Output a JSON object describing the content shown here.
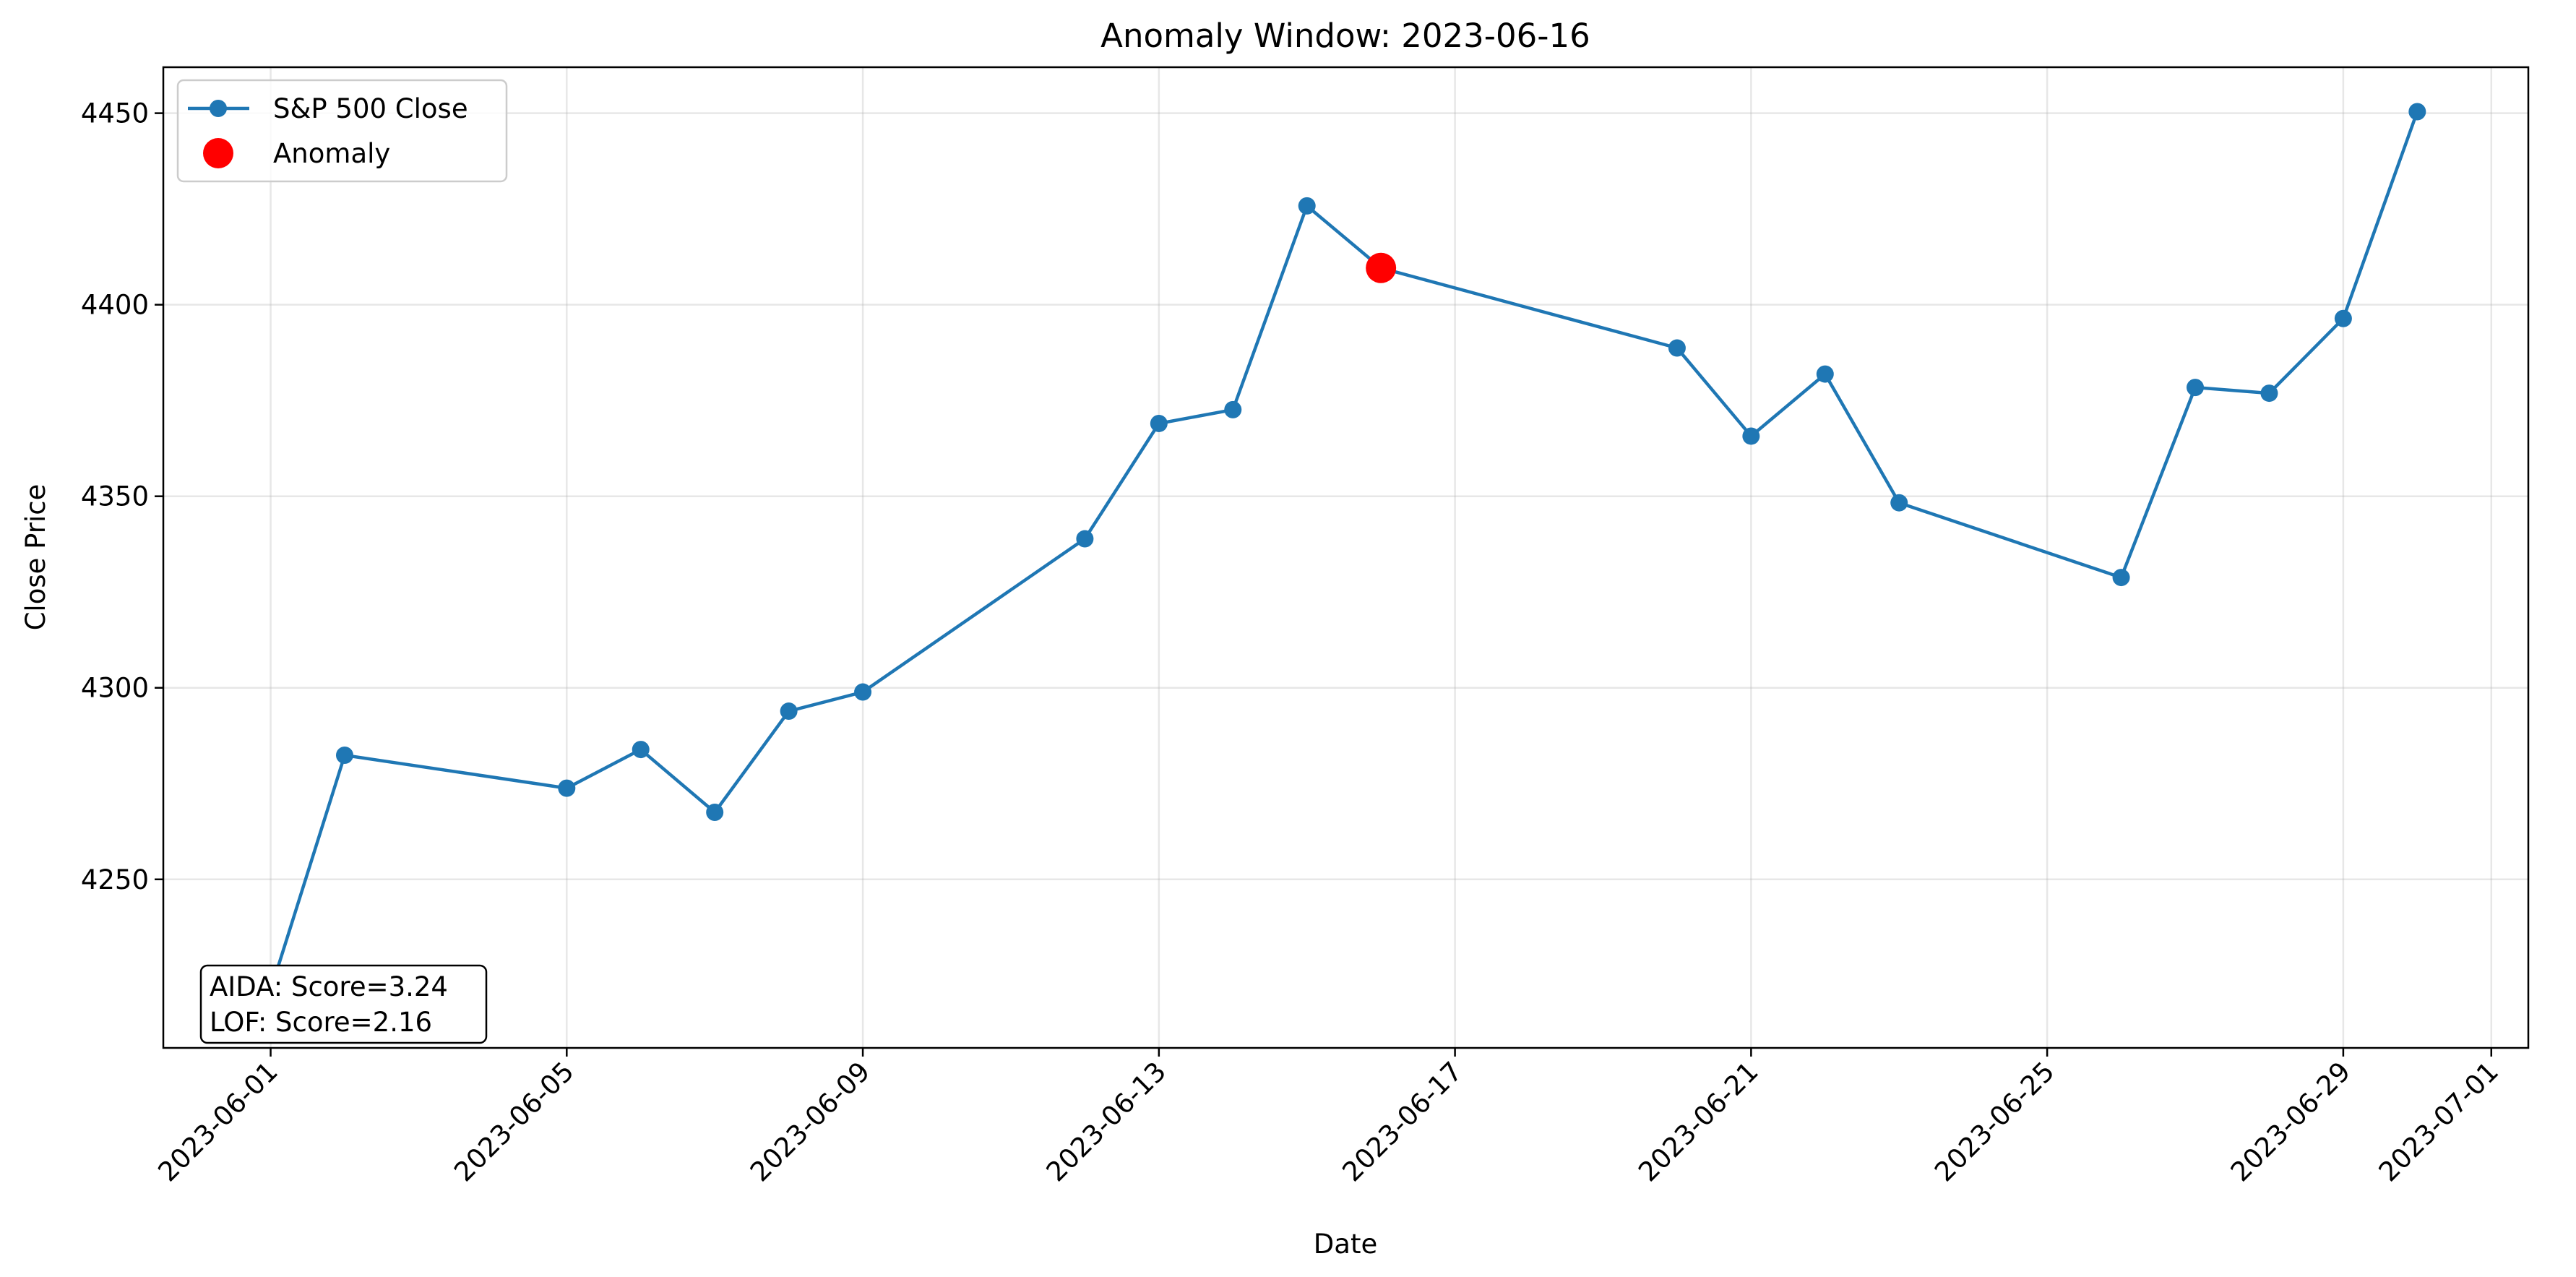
{
  "chart_data": {
    "type": "line",
    "title": "Anomaly Window: 2023-06-16",
    "xlabel": "Date",
    "ylabel": "Close Price",
    "xlim": [
      "2022-05-30",
      "2023-07-01"
    ],
    "ylim": [
      4206,
      4462
    ],
    "grid": true,
    "legend_position": "top-left",
    "xticks": [
      "2023-06-01",
      "2023-06-05",
      "2023-06-09",
      "2023-06-13",
      "2023-06-17",
      "2023-06-21",
      "2023-06-25",
      "2023-06-29",
      "2023-07-01"
    ],
    "yticks": [
      4250,
      4300,
      4350,
      4400,
      4450
    ],
    "series": [
      {
        "name": "S&P 500 Close",
        "color": "#1f77b4",
        "marker": "circle",
        "x": [
          "2023-06-01",
          "2023-06-02",
          "2023-06-05",
          "2023-06-06",
          "2023-06-07",
          "2023-06-08",
          "2023-06-09",
          "2023-06-12",
          "2023-06-13",
          "2023-06-14",
          "2023-06-15",
          "2023-06-16",
          "2023-06-20",
          "2023-06-21",
          "2023-06-22",
          "2023-06-23",
          "2023-06-26",
          "2023-06-27",
          "2023-06-28",
          "2023-06-29",
          "2023-06-30"
        ],
        "y": [
          4221.0,
          4282.4,
          4273.8,
          4283.9,
          4267.5,
          4293.9,
          4298.9,
          4338.9,
          4369.0,
          4372.6,
          4425.8,
          4409.6,
          4388.7,
          4365.7,
          4381.9,
          4348.3,
          4328.8,
          4378.4,
          4376.9,
          4396.4,
          4450.4
        ]
      },
      {
        "name": "Anomaly",
        "color": "#ff0000",
        "marker": "circle",
        "x": [
          "2023-06-16"
        ],
        "y": [
          4409.6
        ]
      }
    ],
    "annotation": {
      "lines": [
        "AIDA: Score=3.24",
        "LOF: Score=2.16"
      ]
    }
  }
}
